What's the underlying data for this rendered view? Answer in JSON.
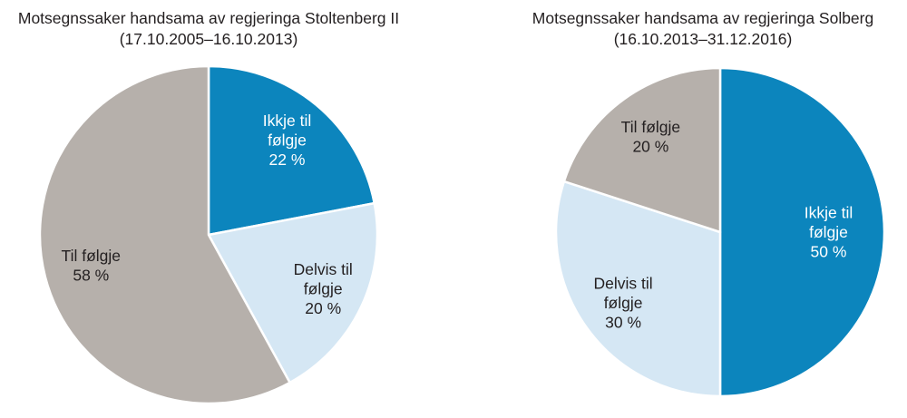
{
  "colors": {
    "background": "#ffffff",
    "slice_divider": "#ffffff",
    "title_text": "#231f20",
    "dark_blue": "#0c85bd",
    "light_blue": "#d5e7f4",
    "warm_gray": "#b6b0ab"
  },
  "chart_data": [
    {
      "type": "pie",
      "title": "Motsegnssaker handsama av regjeringa Stoltenberg II",
      "subtitle": "(17.10.2005–16.10.2013)",
      "start_angle_deg": 0,
      "direction": "clockwise",
      "legend": "none",
      "label_position": "inside",
      "slices": [
        {
          "label": "Ikkje til følgje",
          "label_lines": [
            "Ikkje til",
            "følgje"
          ],
          "value_pct": 22,
          "value_label": "22 %",
          "color": "#0c85bd",
          "text_color": "#ffffff"
        },
        {
          "label": "Delvis til følgje",
          "label_lines": [
            "Delvis til",
            "følgje"
          ],
          "value_pct": 20,
          "value_label": "20 %",
          "color": "#d5e7f4",
          "text_color": "#231f20"
        },
        {
          "label": "Til følgje",
          "label_lines": [
            "Til følgje"
          ],
          "value_pct": 58,
          "value_label": "58 %",
          "color": "#b6b0ab",
          "text_color": "#231f20"
        }
      ]
    },
    {
      "type": "pie",
      "title": "Motsegnssaker handsama av regjeringa Solberg",
      "subtitle": "(16.10.2013–31.12.2016)",
      "start_angle_deg": 0,
      "direction": "clockwise",
      "legend": "none",
      "label_position": "inside",
      "slices": [
        {
          "label": "Ikkje til følgje",
          "label_lines": [
            "Ikkje til",
            "følgje"
          ],
          "value_pct": 50,
          "value_label": "50 %",
          "color": "#0c85bd",
          "text_color": "#ffffff"
        },
        {
          "label": "Delvis til følgje",
          "label_lines": [
            "Delvis til",
            "følgje"
          ],
          "value_pct": 30,
          "value_label": "30 %",
          "color": "#d5e7f4",
          "text_color": "#231f20"
        },
        {
          "label": "Til følgje",
          "label_lines": [
            "Til følgje"
          ],
          "value_pct": 20,
          "value_label": "20 %",
          "color": "#b6b0ab",
          "text_color": "#231f20"
        }
      ]
    }
  ]
}
